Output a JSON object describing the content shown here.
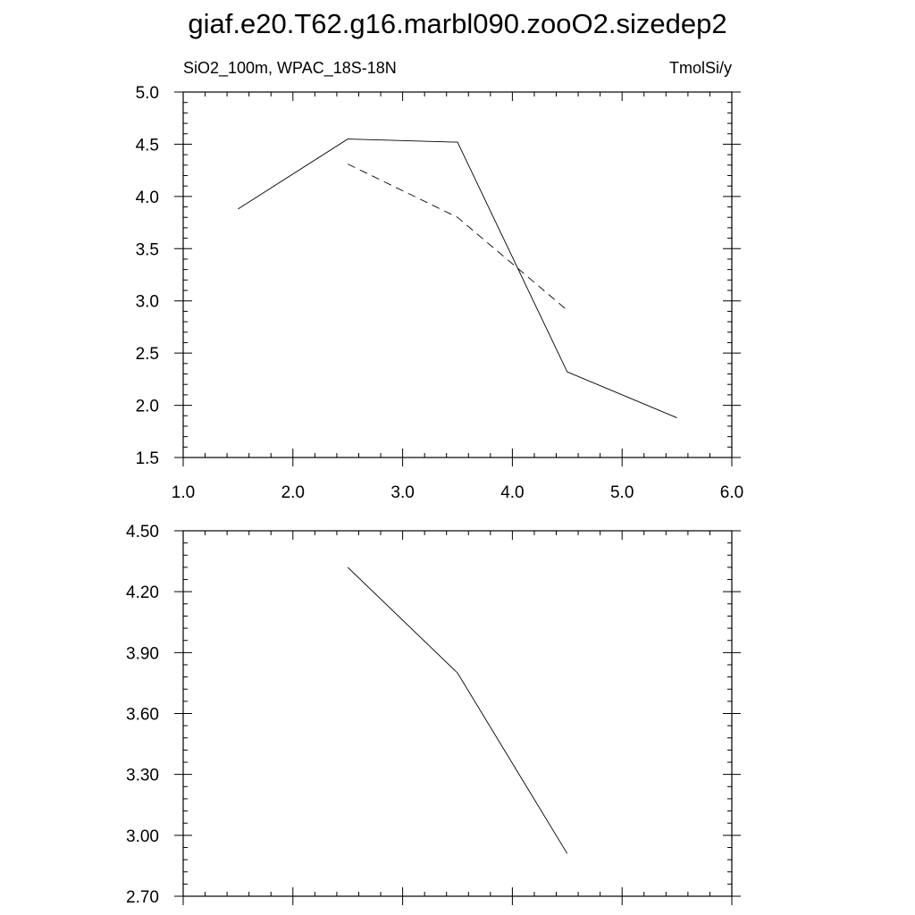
{
  "title": "giaf.e20.T62.g16.marbl090.zooO2.sizedep2",
  "chart_data": [
    {
      "type": "line",
      "left_label": "SiO2_100m, WPAC_18S-18N",
      "right_label": "TmolSi/y",
      "xlim": [
        1.0,
        6.0
      ],
      "ylim": [
        1.5,
        5.0
      ],
      "x_ticks": [
        "1.0",
        "2.0",
        "3.0",
        "4.0",
        "5.0",
        "6.0"
      ],
      "y_ticks": [
        "1.5",
        "2.0",
        "2.5",
        "3.0",
        "3.5",
        "4.0",
        "4.5",
        "5.0"
      ],
      "grid": false,
      "series": [
        {
          "style": "solid",
          "x": [
            1.5,
            2.5,
            3.5,
            4.5,
            5.5
          ],
          "y": [
            3.88,
            4.55,
            4.52,
            2.32,
            1.88
          ]
        },
        {
          "style": "dashed",
          "x": [
            2.5,
            3.5,
            4.5
          ],
          "y": [
            4.31,
            3.8,
            2.91
          ]
        }
      ]
    },
    {
      "type": "line",
      "xlim": [
        1.0,
        6.0
      ],
      "ylim": [
        2.7,
        4.5
      ],
      "x_ticks": [],
      "y_ticks": [
        "2.70",
        "3.00",
        "3.30",
        "3.60",
        "3.90",
        "4.20",
        "4.50"
      ],
      "grid": false,
      "series": [
        {
          "style": "solid",
          "x": [
            2.5,
            3.5,
            4.5
          ],
          "y": [
            4.32,
            3.8,
            2.91
          ]
        }
      ]
    }
  ]
}
